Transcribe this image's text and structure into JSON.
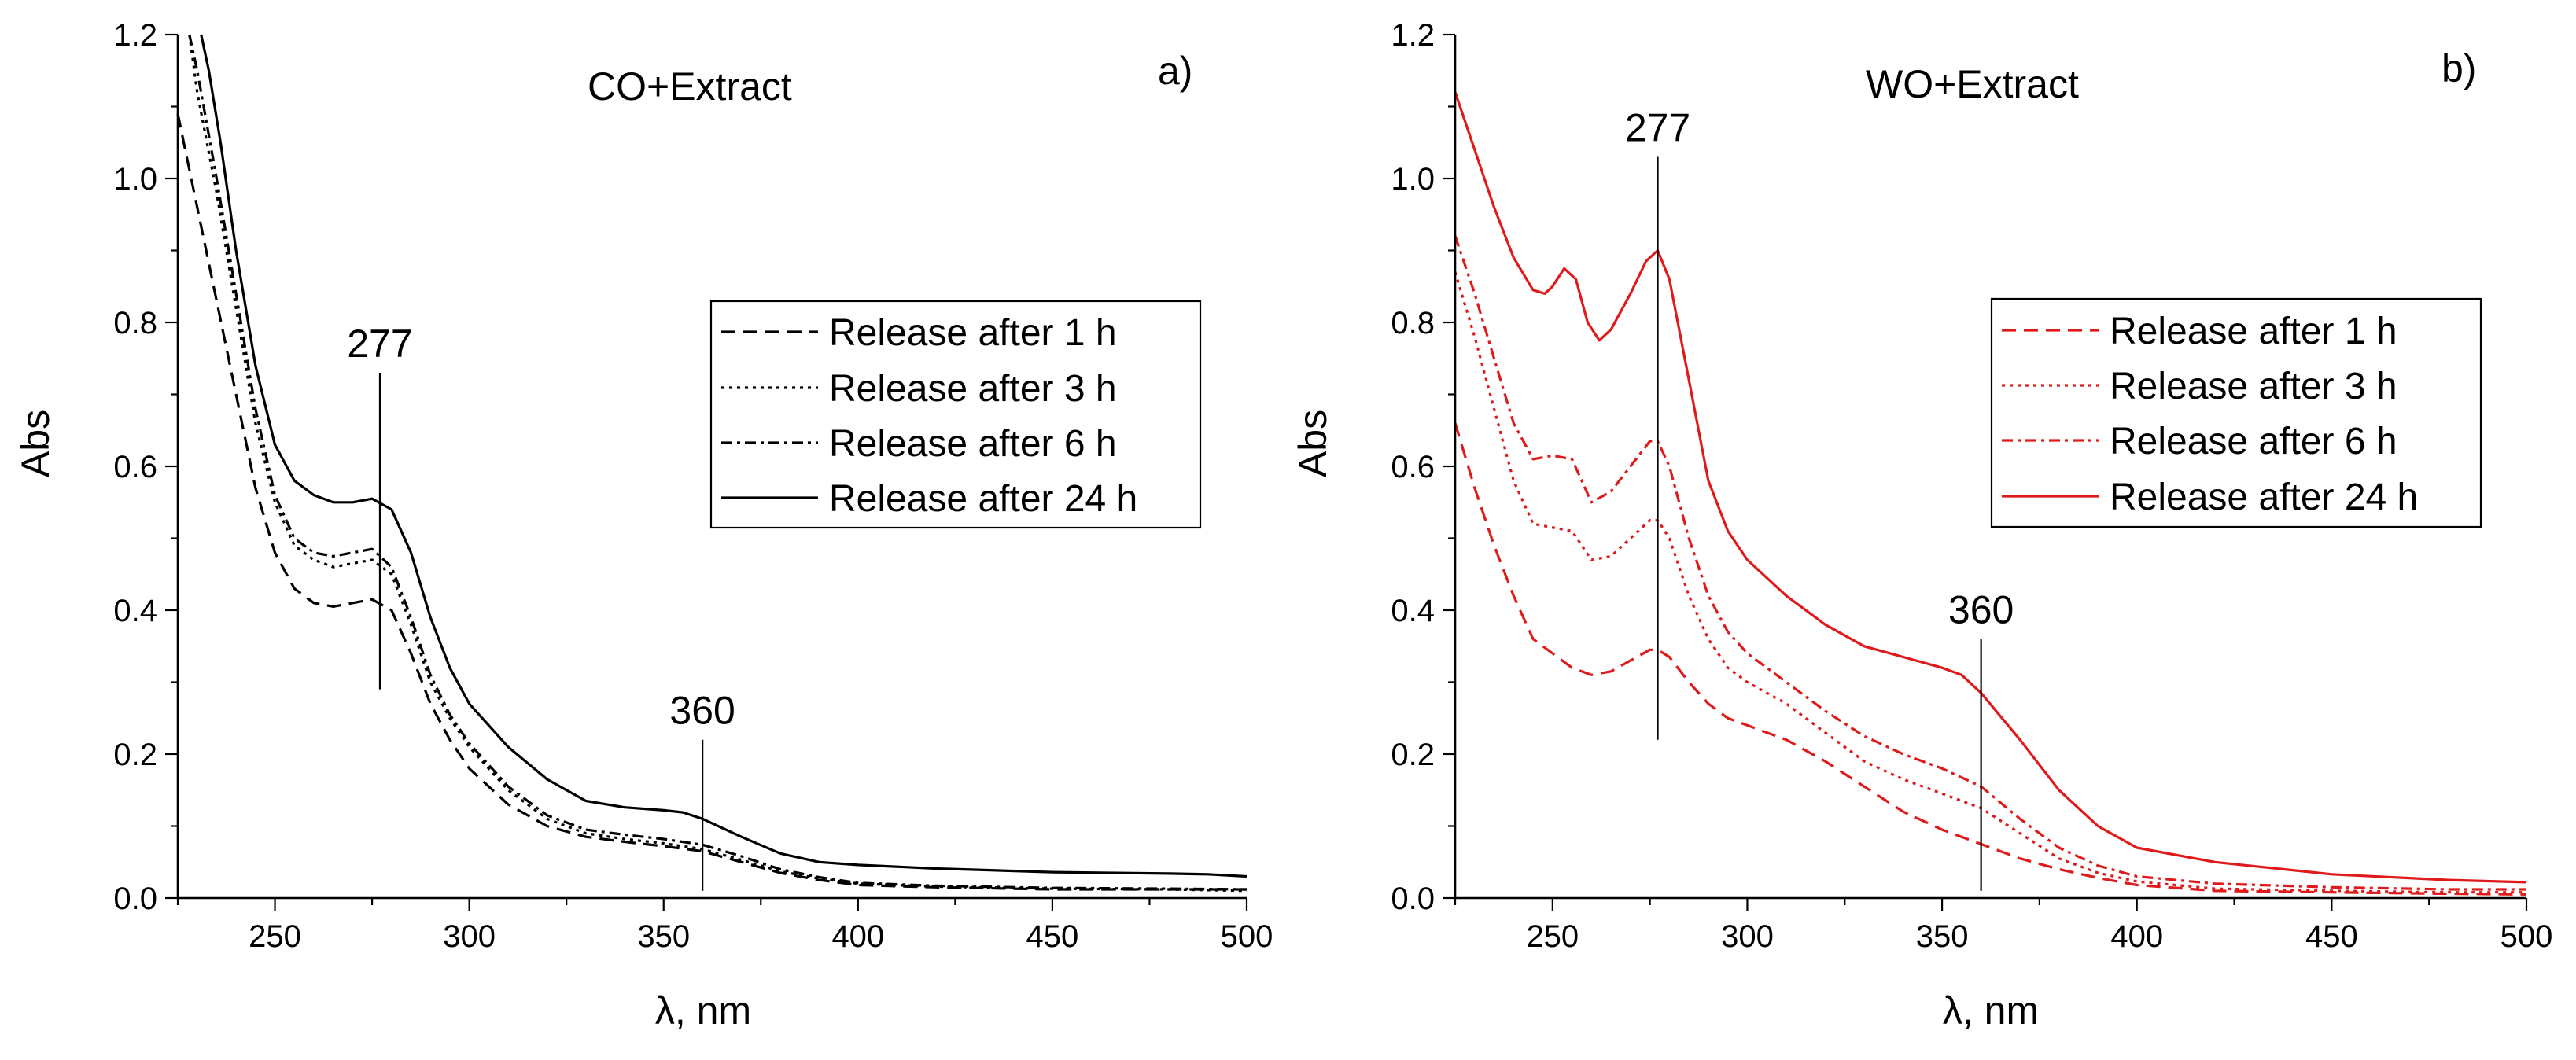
{
  "chart_data": [
    {
      "id": "a",
      "type": "line",
      "panel_label": "a)",
      "title": "CO+Extract",
      "xlabel": "λ, nm",
      "ylabel": "Abs",
      "xlim": [
        225,
        500
      ],
      "ylim": [
        0,
        1.2
      ],
      "xticks": [
        250,
        300,
        350,
        400,
        450,
        500
      ],
      "yticks": [
        0.0,
        0.2,
        0.4,
        0.6,
        0.8,
        1.0,
        1.2
      ],
      "xtick_labels": [
        "250",
        "300",
        "350",
        "400",
        "450",
        "500"
      ],
      "ytick_labels": [
        "0.0",
        "0.2",
        "0.4",
        "0.6",
        "0.8",
        "1.0",
        "1.2"
      ],
      "color": "#000000",
      "legend_position": "upper-right",
      "annotations": [
        {
          "label": "277",
          "x": 277,
          "y_range": [
            0.29,
            0.73
          ]
        },
        {
          "label": "360",
          "x": 360,
          "y_range": [
            0.01,
            0.22
          ]
        }
      ],
      "series": [
        {
          "name": "Release after 1 h",
          "style": "dashed",
          "x": [
            225,
            230,
            235,
            240,
            245,
            250,
            255,
            260,
            265,
            270,
            275,
            280,
            285,
            290,
            295,
            300,
            310,
            320,
            330,
            340,
            350,
            360,
            370,
            380,
            390,
            400,
            420,
            450,
            480,
            500
          ],
          "y": [
            1.09,
            0.96,
            0.83,
            0.7,
            0.57,
            0.48,
            0.43,
            0.41,
            0.405,
            0.41,
            0.415,
            0.4,
            0.34,
            0.27,
            0.22,
            0.18,
            0.13,
            0.1,
            0.085,
            0.078,
            0.072,
            0.065,
            0.05,
            0.035,
            0.025,
            0.018,
            0.015,
            0.012,
            0.012,
            0.012
          ]
        },
        {
          "name": "Release after 3 h",
          "style": "dotted",
          "x": [
            228,
            230,
            235,
            240,
            245,
            250,
            255,
            260,
            265,
            270,
            275,
            280,
            285,
            290,
            295,
            300,
            310,
            320,
            330,
            340,
            350,
            360,
            370,
            380,
            390,
            400,
            420,
            450,
            480,
            500
          ],
          "y": [
            1.2,
            1.12,
            0.98,
            0.82,
            0.66,
            0.55,
            0.49,
            0.47,
            0.46,
            0.465,
            0.47,
            0.45,
            0.38,
            0.3,
            0.25,
            0.21,
            0.15,
            0.11,
            0.09,
            0.082,
            0.076,
            0.068,
            0.053,
            0.037,
            0.027,
            0.02,
            0.016,
            0.013,
            0.012,
            0.01
          ]
        },
        {
          "name": "Release after 6 h",
          "style": "dashdot",
          "x": [
            228,
            230,
            235,
            240,
            245,
            250,
            255,
            260,
            265,
            270,
            275,
            280,
            285,
            290,
            295,
            300,
            310,
            320,
            330,
            340,
            350,
            360,
            370,
            380,
            390,
            400,
            420,
            450,
            480,
            500
          ],
          "y": [
            1.2,
            1.15,
            1.0,
            0.84,
            0.68,
            0.56,
            0.5,
            0.48,
            0.475,
            0.48,
            0.485,
            0.46,
            0.39,
            0.31,
            0.255,
            0.215,
            0.155,
            0.115,
            0.095,
            0.088,
            0.082,
            0.074,
            0.058,
            0.04,
            0.029,
            0.021,
            0.017,
            0.014,
            0.013,
            0.012
          ]
        },
        {
          "name": "Release after 24 h",
          "style": "solid",
          "x": [
            231,
            233,
            236,
            240,
            245,
            250,
            255,
            260,
            265,
            270,
            275,
            280,
            285,
            290,
            295,
            300,
            310,
            320,
            330,
            340,
            350,
            355,
            360,
            370,
            380,
            390,
            400,
            420,
            450,
            480,
            490,
            500
          ],
          "y": [
            1.2,
            1.15,
            1.05,
            0.9,
            0.74,
            0.63,
            0.58,
            0.56,
            0.55,
            0.55,
            0.555,
            0.54,
            0.48,
            0.39,
            0.32,
            0.27,
            0.21,
            0.165,
            0.135,
            0.126,
            0.122,
            0.119,
            0.11,
            0.085,
            0.062,
            0.05,
            0.046,
            0.041,
            0.036,
            0.034,
            0.033,
            0.03
          ]
        }
      ]
    },
    {
      "id": "b",
      "type": "line",
      "panel_label": "b)",
      "title": "WO+Extract",
      "xlabel": "λ, nm",
      "ylabel": "Abs",
      "xlim": [
        225,
        500
      ],
      "ylim": [
        0,
        1.2
      ],
      "xticks": [
        250,
        300,
        350,
        400,
        450,
        500
      ],
      "yticks": [
        0.0,
        0.2,
        0.4,
        0.6,
        0.8,
        1.0,
        1.2
      ],
      "xtick_labels": [
        "250",
        "300",
        "350",
        "400",
        "450",
        "500"
      ],
      "ytick_labels": [
        "0.0",
        "0.2",
        "0.4",
        "0.6",
        "0.8",
        "1.0",
        "1.2"
      ],
      "color": "#e01a1a",
      "legend_position": "upper-right",
      "annotations": [
        {
          "label": "277",
          "x": 277,
          "y_range": [
            0.22,
            1.03
          ]
        },
        {
          "label": "360",
          "x": 360,
          "y_range": [
            0.01,
            0.36
          ]
        }
      ],
      "series": [
        {
          "name": "Release after 1 h",
          "style": "dashed",
          "x": [
            225,
            230,
            235,
            240,
            245,
            250,
            255,
            260,
            265,
            270,
            275,
            277,
            280,
            285,
            290,
            295,
            300,
            310,
            320,
            330,
            340,
            350,
            360,
            370,
            380,
            390,
            400,
            420,
            450,
            480,
            500
          ],
          "y": [
            0.66,
            0.57,
            0.49,
            0.42,
            0.36,
            0.34,
            0.32,
            0.31,
            0.315,
            0.33,
            0.345,
            0.345,
            0.335,
            0.3,
            0.27,
            0.25,
            0.24,
            0.22,
            0.19,
            0.155,
            0.12,
            0.095,
            0.075,
            0.055,
            0.04,
            0.028,
            0.018,
            0.01,
            0.008,
            0.006,
            0.005
          ]
        },
        {
          "name": "Release after 3 h",
          "style": "dotted",
          "x": [
            225,
            230,
            235,
            240,
            245,
            250,
            255,
            260,
            265,
            270,
            275,
            277,
            280,
            285,
            290,
            295,
            300,
            310,
            320,
            330,
            340,
            350,
            360,
            370,
            380,
            390,
            400,
            420,
            450,
            480,
            500
          ],
          "y": [
            0.87,
            0.78,
            0.68,
            0.58,
            0.52,
            0.515,
            0.51,
            0.47,
            0.475,
            0.5,
            0.525,
            0.525,
            0.5,
            0.42,
            0.36,
            0.32,
            0.3,
            0.27,
            0.23,
            0.19,
            0.165,
            0.145,
            0.125,
            0.09,
            0.055,
            0.035,
            0.023,
            0.013,
            0.01,
            0.008,
            0.008
          ]
        },
        {
          "name": "Release after 6 h",
          "style": "dashdot",
          "x": [
            225,
            230,
            235,
            240,
            245,
            250,
            255,
            260,
            265,
            270,
            275,
            277,
            280,
            285,
            290,
            295,
            300,
            310,
            320,
            330,
            340,
            350,
            360,
            370,
            380,
            390,
            400,
            420,
            450,
            480,
            500
          ],
          "y": [
            0.92,
            0.84,
            0.75,
            0.66,
            0.61,
            0.615,
            0.61,
            0.55,
            0.565,
            0.6,
            0.635,
            0.635,
            0.6,
            0.5,
            0.42,
            0.37,
            0.34,
            0.3,
            0.26,
            0.225,
            0.2,
            0.18,
            0.155,
            0.11,
            0.07,
            0.045,
            0.03,
            0.02,
            0.015,
            0.012,
            0.012
          ]
        },
        {
          "name": "Release after 24 h",
          "style": "solid",
          "x": [
            225,
            230,
            235,
            240,
            245,
            248,
            250,
            253,
            256,
            259,
            262,
            265,
            270,
            274,
            277,
            280,
            285,
            290,
            295,
            300,
            310,
            320,
            330,
            340,
            350,
            355,
            360,
            370,
            380,
            390,
            400,
            420,
            450,
            480,
            500
          ],
          "y": [
            1.12,
            1.04,
            0.96,
            0.89,
            0.845,
            0.84,
            0.85,
            0.875,
            0.86,
            0.8,
            0.775,
            0.79,
            0.84,
            0.885,
            0.9,
            0.86,
            0.72,
            0.58,
            0.51,
            0.47,
            0.42,
            0.38,
            0.35,
            0.335,
            0.32,
            0.31,
            0.285,
            0.22,
            0.15,
            0.1,
            0.07,
            0.05,
            0.033,
            0.025,
            0.022
          ]
        }
      ]
    }
  ]
}
